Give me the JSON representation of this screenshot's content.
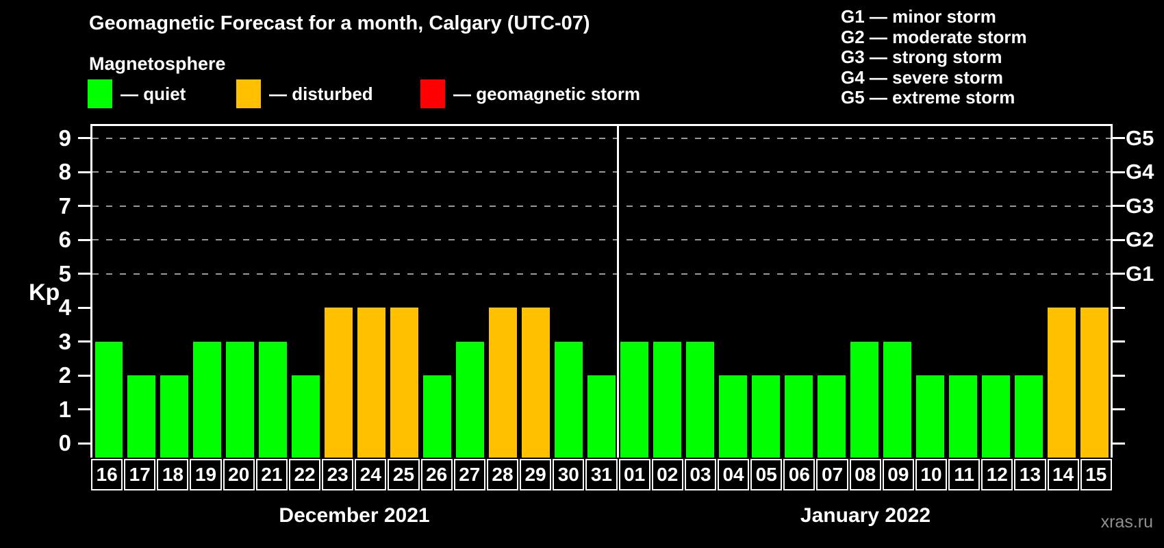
{
  "title": "Geomagnetic Forecast for a month, Calgary (UTC-07)",
  "subtitle": "Magnetosphere",
  "legend": {
    "items": [
      {
        "key": "quiet",
        "label": "— quiet",
        "color": "#00ff00"
      },
      {
        "key": "disturbed",
        "label": "— disturbed",
        "color": "#ffc000"
      },
      {
        "key": "storm",
        "label": "— geomagnetic storm",
        "color": "#ff0000"
      }
    ]
  },
  "g_legend": [
    "G1 — minor storm",
    "G2 — moderate storm",
    "G3 — strong storm",
    "G4 — severe storm",
    "G5 — extreme storm"
  ],
  "watermark": "xras.ru",
  "chart_data": {
    "type": "bar",
    "title": "Geomagnetic Forecast for a month, Calgary (UTC-07)",
    "ylabel": "Kp",
    "ylim": [
      -0.4,
      9.4
    ],
    "yticks": [
      0,
      1,
      2,
      3,
      4,
      5,
      6,
      7,
      8,
      9
    ],
    "grid_levels": [
      {
        "kp": 5,
        "g": "G1"
      },
      {
        "kp": 6,
        "g": "G2"
      },
      {
        "kp": 7,
        "g": "G3"
      },
      {
        "kp": 8,
        "g": "G4"
      },
      {
        "kp": 9,
        "g": "G5"
      }
    ],
    "legend_position": "top",
    "grid": "dashed horizontal at G-levels only",
    "status_colors": {
      "quiet": "#00ff00",
      "disturbed": "#ffc000",
      "storm": "#ff0000"
    },
    "months": [
      {
        "label": "December 2021"
      },
      {
        "label": "January 2022"
      }
    ],
    "bars": [
      {
        "day": "16",
        "month": 0,
        "kp": 3,
        "status": "quiet"
      },
      {
        "day": "17",
        "month": 0,
        "kp": 2,
        "status": "quiet"
      },
      {
        "day": "18",
        "month": 0,
        "kp": 2,
        "status": "quiet"
      },
      {
        "day": "19",
        "month": 0,
        "kp": 3,
        "status": "quiet"
      },
      {
        "day": "20",
        "month": 0,
        "kp": 3,
        "status": "quiet"
      },
      {
        "day": "21",
        "month": 0,
        "kp": 3,
        "status": "quiet"
      },
      {
        "day": "22",
        "month": 0,
        "kp": 2,
        "status": "quiet"
      },
      {
        "day": "23",
        "month": 0,
        "kp": 4,
        "status": "disturbed"
      },
      {
        "day": "24",
        "month": 0,
        "kp": 4,
        "status": "disturbed"
      },
      {
        "day": "25",
        "month": 0,
        "kp": 4,
        "status": "disturbed"
      },
      {
        "day": "26",
        "month": 0,
        "kp": 2,
        "status": "quiet"
      },
      {
        "day": "27",
        "month": 0,
        "kp": 3,
        "status": "quiet"
      },
      {
        "day": "28",
        "month": 0,
        "kp": 4,
        "status": "disturbed"
      },
      {
        "day": "29",
        "month": 0,
        "kp": 4,
        "status": "disturbed"
      },
      {
        "day": "30",
        "month": 0,
        "kp": 3,
        "status": "quiet"
      },
      {
        "day": "31",
        "month": 0,
        "kp": 2,
        "status": "quiet"
      },
      {
        "day": "01",
        "month": 1,
        "kp": 3,
        "status": "quiet"
      },
      {
        "day": "02",
        "month": 1,
        "kp": 3,
        "status": "quiet"
      },
      {
        "day": "03",
        "month": 1,
        "kp": 3,
        "status": "quiet"
      },
      {
        "day": "04",
        "month": 1,
        "kp": 2,
        "status": "quiet"
      },
      {
        "day": "05",
        "month": 1,
        "kp": 2,
        "status": "quiet"
      },
      {
        "day": "06",
        "month": 1,
        "kp": 2,
        "status": "quiet"
      },
      {
        "day": "07",
        "month": 1,
        "kp": 2,
        "status": "quiet"
      },
      {
        "day": "08",
        "month": 1,
        "kp": 3,
        "status": "quiet"
      },
      {
        "day": "09",
        "month": 1,
        "kp": 3,
        "status": "quiet"
      },
      {
        "day": "10",
        "month": 1,
        "kp": 2,
        "status": "quiet"
      },
      {
        "day": "11",
        "month": 1,
        "kp": 2,
        "status": "quiet"
      },
      {
        "day": "12",
        "month": 1,
        "kp": 2,
        "status": "quiet"
      },
      {
        "day": "13",
        "month": 1,
        "kp": 2,
        "status": "quiet"
      },
      {
        "day": "14",
        "month": 1,
        "kp": 4,
        "status": "disturbed"
      },
      {
        "day": "15",
        "month": 1,
        "kp": 4,
        "status": "disturbed"
      }
    ]
  }
}
